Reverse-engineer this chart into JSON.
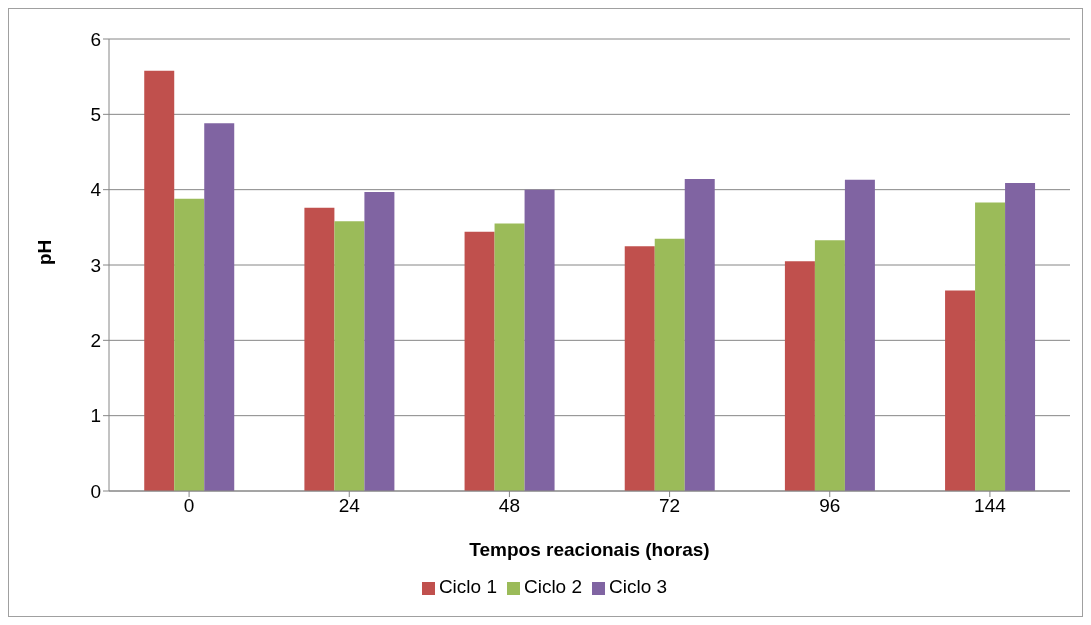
{
  "chart_data": {
    "type": "bar",
    "xlabel": "Tempos reacionais (horas)",
    "ylabel": "pH",
    "categories": [
      "0",
      "24",
      "48",
      "72",
      "96",
      "144"
    ],
    "series": [
      {
        "name": "Ciclo 1",
        "color": "#c0504d",
        "values": [
          5.58,
          3.76,
          3.44,
          3.25,
          3.05,
          2.66
        ]
      },
      {
        "name": "Ciclo 2",
        "color": "#9bbb59",
        "values": [
          3.88,
          3.58,
          3.55,
          3.35,
          3.33,
          3.83
        ]
      },
      {
        "name": "Ciclo 3",
        "color": "#8064a2",
        "values": [
          4.88,
          3.97,
          4.0,
          4.14,
          4.13,
          4.09
        ]
      }
    ],
    "ylim": [
      0,
      6
    ],
    "yticks": [
      0,
      1,
      2,
      3,
      4,
      5,
      6
    ],
    "grid": "y",
    "legend": "bottom"
  }
}
